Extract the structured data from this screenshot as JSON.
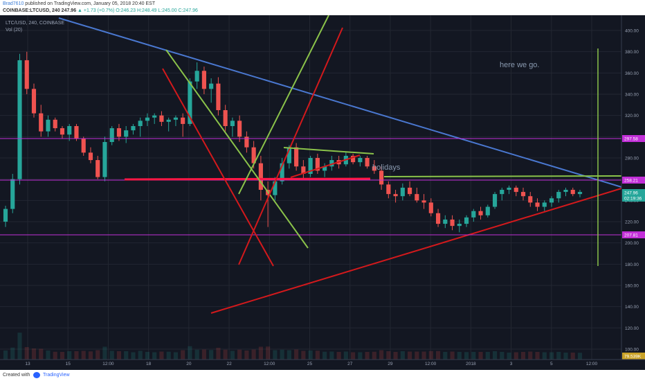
{
  "header": {
    "user": "Brad7610",
    "published": " published on TradingView.com, January 05, 2018 20:40 EST",
    "symbol": "COINBASE:LTCUSD, 240",
    "last": "247.96",
    "change": "▲ +1.73 (+0.7%)",
    "ohlc": "O:246.23 H:248.49 L:245.00 C:247.96"
  },
  "footer": {
    "created": "Created with",
    "brand": "TradingView"
  },
  "colors": {
    "background": "#131722",
    "grid": "#232732",
    "up": "#26a69a",
    "down": "#ef5350",
    "blue_line": "#4a78d1",
    "red_line": "#d3191c",
    "green_line": "#8bc34a",
    "magenta_line": "#c22fd8"
  },
  "chart_data": {
    "type": "candlestick",
    "legend": [
      "LTC/USD, 240, COINBASE",
      "Vol (20)"
    ],
    "y_ticks": [
      100,
      120,
      140,
      160,
      180,
      200,
      220,
      240,
      260,
      280,
      300,
      320,
      340,
      360,
      380,
      400
    ],
    "y_range": [
      90,
      410
    ],
    "x_ticks": [
      "13",
      "15",
      "12:00",
      "18",
      "20",
      "22",
      "12:00",
      "25",
      "27",
      "29",
      "12:00",
      "2018",
      "3",
      "5",
      "12:00"
    ],
    "price_labels": [
      {
        "value": "297.58",
        "bg": "#c22fd8"
      },
      {
        "value": "258.21",
        "bg": "#c22fd8"
      },
      {
        "value": "247.96",
        "bg": "#26a69a"
      },
      {
        "value": "02:19:36",
        "bg": "#26a69a"
      },
      {
        "value": "207.81",
        "bg": "#c22fd8"
      },
      {
        "value": "79.539K",
        "bg": "#c9a227"
      }
    ],
    "candles": [
      [
        220,
        235,
        215,
        232
      ],
      [
        232,
        265,
        228,
        260
      ],
      [
        260,
        378,
        255,
        372
      ],
      [
        372,
        380,
        340,
        345
      ],
      [
        345,
        350,
        318,
        322
      ],
      [
        322,
        330,
        300,
        305
      ],
      [
        305,
        320,
        300,
        316
      ],
      [
        316,
        318,
        305,
        308
      ],
      [
        308,
        310,
        298,
        302
      ],
      [
        302,
        312,
        296,
        310
      ],
      [
        310,
        312,
        296,
        298
      ],
      [
        298,
        300,
        282,
        285
      ],
      [
        285,
        290,
        275,
        278
      ],
      [
        278,
        282,
        260,
        262
      ],
      [
        262,
        300,
        258,
        295
      ],
      [
        295,
        310,
        292,
        308
      ],
      [
        308,
        312,
        296,
        300
      ],
      [
        300,
        310,
        294,
        306
      ],
      [
        306,
        312,
        302,
        310
      ],
      [
        310,
        318,
        300,
        315
      ],
      [
        315,
        322,
        310,
        318
      ],
      [
        318,
        322,
        312,
        320
      ],
      [
        320,
        324,
        310,
        314
      ],
      [
        314,
        318,
        305,
        316
      ],
      [
        316,
        320,
        310,
        318
      ],
      [
        318,
        322,
        300,
        312
      ],
      [
        312,
        355,
        310,
        352
      ],
      [
        352,
        370,
        345,
        362
      ],
      [
        362,
        366,
        340,
        345
      ],
      [
        345,
        355,
        332,
        350
      ],
      [
        350,
        356,
        320,
        325
      ],
      [
        325,
        330,
        305,
        310
      ],
      [
        310,
        318,
        300,
        315
      ],
      [
        315,
        320,
        295,
        300
      ],
      [
        300,
        305,
        285,
        290
      ],
      [
        290,
        296,
        270,
        275
      ],
      [
        275,
        282,
        240,
        250
      ],
      [
        250,
        258,
        215,
        245
      ],
      [
        245,
        262,
        240,
        258
      ],
      [
        258,
        280,
        255,
        275
      ],
      [
        275,
        292,
        270,
        290
      ],
      [
        290,
        294,
        268,
        272
      ],
      [
        272,
        278,
        260,
        265
      ],
      [
        265,
        282,
        262,
        280
      ],
      [
        280,
        284,
        265,
        268
      ],
      [
        268,
        275,
        262,
        272
      ],
      [
        272,
        282,
        268,
        278
      ],
      [
        278,
        282,
        270,
        274
      ],
      [
        274,
        286,
        272,
        282
      ],
      [
        282,
        284,
        274,
        276
      ],
      [
        276,
        282,
        272,
        280
      ],
      [
        280,
        282,
        270,
        272
      ],
      [
        272,
        278,
        265,
        268
      ],
      [
        268,
        272,
        250,
        255
      ],
      [
        255,
        258,
        242,
        246
      ],
      [
        246,
        250,
        238,
        244
      ],
      [
        244,
        256,
        240,
        252
      ],
      [
        252,
        258,
        244,
        246
      ],
      [
        246,
        252,
        238,
        240
      ],
      [
        240,
        246,
        232,
        238
      ],
      [
        238,
        242,
        225,
        228
      ],
      [
        228,
        232,
        215,
        218
      ],
      [
        218,
        226,
        214,
        222
      ],
      [
        222,
        226,
        212,
        216
      ],
      [
        216,
        222,
        210,
        218
      ],
      [
        218,
        226,
        215,
        224
      ],
      [
        224,
        232,
        220,
        230
      ],
      [
        230,
        234,
        222,
        226
      ],
      [
        226,
        236,
        224,
        234
      ],
      [
        234,
        248,
        232,
        246
      ],
      [
        246,
        252,
        240,
        250
      ],
      [
        250,
        254,
        246,
        252
      ],
      [
        252,
        254,
        244,
        248
      ],
      [
        248,
        252,
        240,
        244
      ],
      [
        244,
        248,
        234,
        238
      ],
      [
        238,
        242,
        230,
        234
      ],
      [
        234,
        240,
        230,
        238
      ],
      [
        238,
        244,
        234,
        242
      ],
      [
        242,
        250,
        238,
        248
      ],
      [
        248,
        252,
        244,
        250
      ],
      [
        250,
        252,
        244,
        246
      ],
      [
        246,
        250,
        243,
        248
      ]
    ],
    "annotations": [
      {
        "text": "here we go.",
        "color": "#8a9ab0"
      },
      {
        "text": "holidays",
        "color": "#8a9ab0"
      }
    ]
  }
}
